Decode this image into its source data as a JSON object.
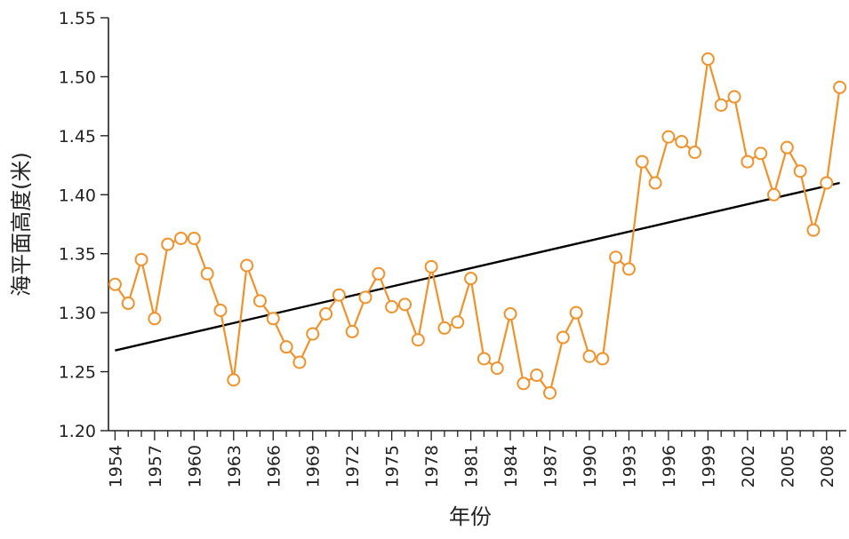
{
  "chart_data": {
    "type": "line",
    "title": "",
    "xlabel": "年份",
    "ylabel": "海平面高度(米)",
    "ylim": [
      1.2,
      1.55
    ],
    "xlim": [
      1953.5,
      2009.5
    ],
    "yticks": [
      "1.20",
      "1.25",
      "1.30",
      "1.35",
      "1.40",
      "1.45",
      "1.50",
      "1.55"
    ],
    "xticks": [
      "1954",
      "1957",
      "1960",
      "1963",
      "1966",
      "1969",
      "1972",
      "1975",
      "1978",
      "1981",
      "1984",
      "1987",
      "1990",
      "1993",
      "1996",
      "1999",
      "2002",
      "2005",
      "2008"
    ],
    "grid": false,
    "colors": {
      "series": "#F0922B",
      "trend": "#000000",
      "axis": "#222222"
    },
    "series": [
      {
        "x": [
          1954,
          1955,
          1956,
          1957,
          1958,
          1959,
          1960,
          1961,
          1962,
          1963,
          1964,
          1965,
          1966,
          1967,
          1968,
          1969,
          1970,
          1971,
          1972,
          1973,
          1974,
          1975,
          1976,
          1977,
          1978,
          1979,
          1980,
          1981,
          1982,
          1983,
          1984,
          1985,
          1986,
          1987,
          1988,
          1989,
          1990,
          1991,
          1992,
          1993,
          1994,
          1995,
          1996,
          1997,
          1998,
          1999,
          2000,
          2001,
          2002,
          2003,
          2004,
          2005,
          2006,
          2007,
          2008,
          2009
        ],
        "values": [
          1.324,
          1.308,
          1.345,
          1.295,
          1.358,
          1.363,
          1.363,
          1.333,
          1.302,
          1.243,
          1.34,
          1.31,
          1.295,
          1.271,
          1.258,
          1.282,
          1.299,
          1.315,
          1.284,
          1.313,
          1.333,
          1.305,
          1.307,
          1.277,
          1.339,
          1.287,
          1.292,
          1.329,
          1.261,
          1.253,
          1.299,
          1.24,
          1.247,
          1.232,
          1.279,
          1.3,
          1.263,
          1.261,
          1.347,
          1.337,
          1.428,
          1.41,
          1.449,
          1.445,
          1.436,
          1.515,
          1.476,
          1.483,
          1.428,
          1.435,
          1.4,
          1.44,
          1.42,
          1.37,
          1.41,
          1.491
        ]
      }
    ],
    "trendline": {
      "x": [
        1954,
        2009
      ],
      "values": [
        1.268,
        1.41
      ]
    }
  }
}
